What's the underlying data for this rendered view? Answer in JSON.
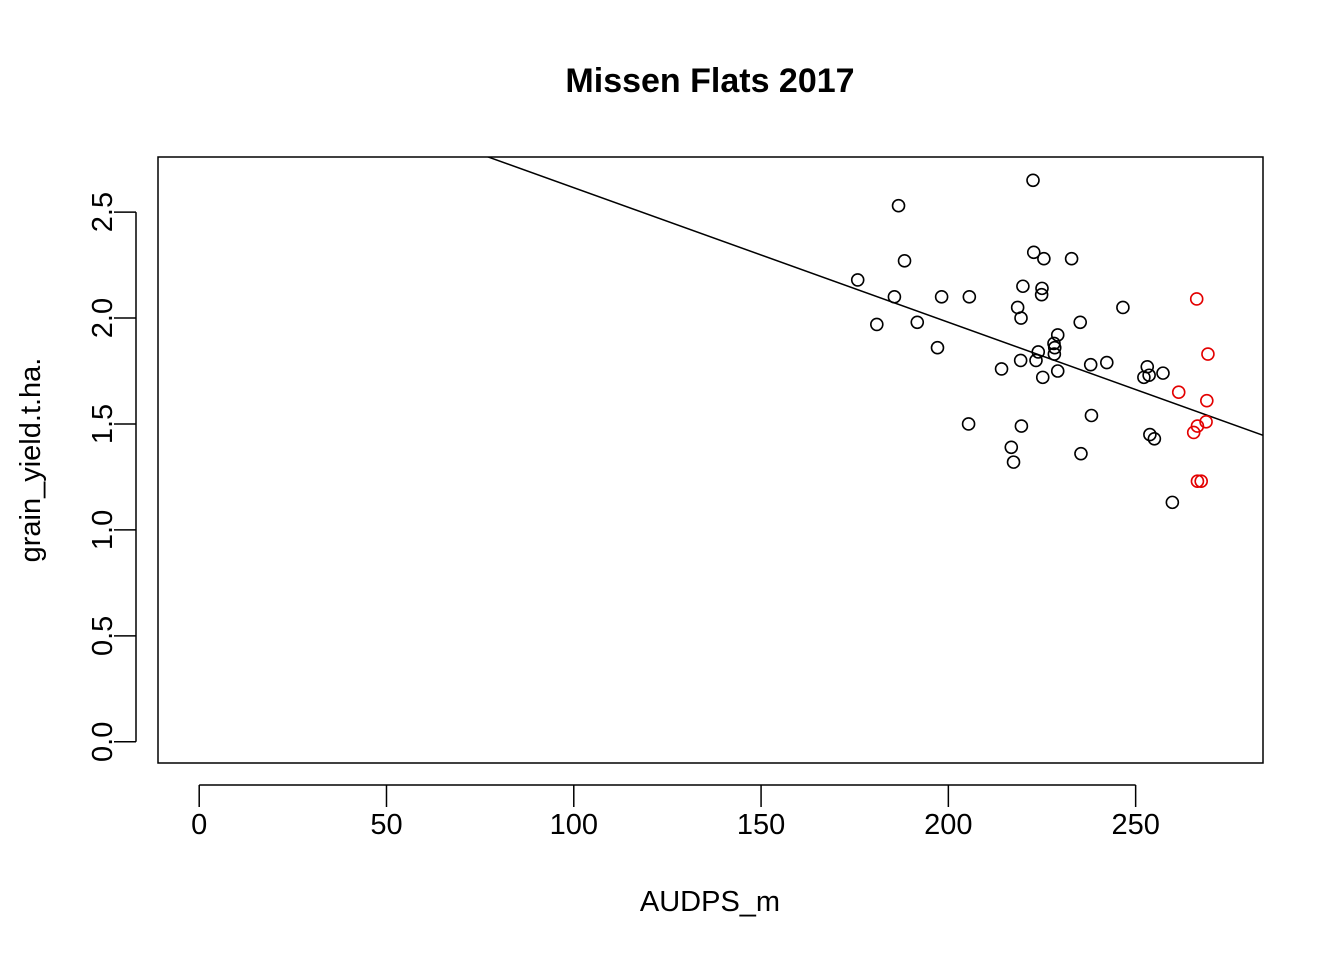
{
  "chart_data": {
    "type": "scatter",
    "title": "Missen Flats 2017",
    "xlabel": "AUDPS_m",
    "ylabel": "grain_yield.t.ha.",
    "xlim": [
      -11,
      284
    ],
    "ylim": [
      -0.1,
      2.76
    ],
    "x_ticks": [
      0,
      50,
      100,
      150,
      200,
      250
    ],
    "y_ticks": [
      0.0,
      0.5,
      1.0,
      1.5,
      2.0,
      2.5
    ],
    "x_tick_labels": [
      "0",
      "50",
      "100",
      "150",
      "200",
      "250"
    ],
    "y_tick_labels": [
      "0.0",
      "0.5",
      "1.0",
      "1.5",
      "2.0",
      "2.5"
    ],
    "grid": false,
    "box": true,
    "series": [
      {
        "color": "#000000",
        "marker": "open-circle",
        "points": [
          [
            175.8,
            2.18
          ],
          [
            180.9,
            1.97
          ],
          [
            185.6,
            2.1
          ],
          [
            186.7,
            2.53
          ],
          [
            188.3,
            2.27
          ],
          [
            191.7,
            1.98
          ],
          [
            197.1,
            1.86
          ],
          [
            198.2,
            2.1
          ],
          [
            205.4,
            1.5
          ],
          [
            205.6,
            2.1
          ],
          [
            214.2,
            1.76
          ],
          [
            216.8,
            1.39
          ],
          [
            217.4,
            1.32
          ],
          [
            218.5,
            2.05
          ],
          [
            219.3,
            1.8
          ],
          [
            219.4,
            2.0
          ],
          [
            219.5,
            1.49
          ],
          [
            219.9,
            2.15
          ],
          [
            222.6,
            2.65
          ],
          [
            222.8,
            2.31
          ],
          [
            223.4,
            1.8
          ],
          [
            224.0,
            1.84
          ],
          [
            224.9,
            2.11
          ],
          [
            225.0,
            2.14
          ],
          [
            225.2,
            1.72
          ],
          [
            225.5,
            2.28
          ],
          [
            228.2,
            1.88
          ],
          [
            228.3,
            1.83
          ],
          [
            228.4,
            1.86
          ],
          [
            229.2,
            1.92
          ],
          [
            229.2,
            1.75
          ],
          [
            232.9,
            2.28
          ],
          [
            235.2,
            1.98
          ],
          [
            235.4,
            1.36
          ],
          [
            238.0,
            1.78
          ],
          [
            238.2,
            1.54
          ],
          [
            242.3,
            1.79
          ],
          [
            246.6,
            2.05
          ],
          [
            252.2,
            1.72
          ],
          [
            253.1,
            1.77
          ],
          [
            253.6,
            1.73
          ],
          [
            253.8,
            1.45
          ],
          [
            255.0,
            1.43
          ],
          [
            257.3,
            1.74
          ],
          [
            259.8,
            1.13
          ]
        ]
      },
      {
        "color": "#e30000",
        "marker": "open-circle",
        "points": [
          [
            261.5,
            1.65
          ],
          [
            265.5,
            1.46
          ],
          [
            266.3,
            2.09
          ],
          [
            266.5,
            1.49
          ],
          [
            266.5,
            1.23
          ],
          [
            267.5,
            1.23
          ],
          [
            268.8,
            1.51
          ],
          [
            269.0,
            1.61
          ],
          [
            269.3,
            1.83
          ]
        ]
      }
    ],
    "regression_line": {
      "intercept": 3.25,
      "slope": -0.00635,
      "color": "#000000"
    }
  }
}
